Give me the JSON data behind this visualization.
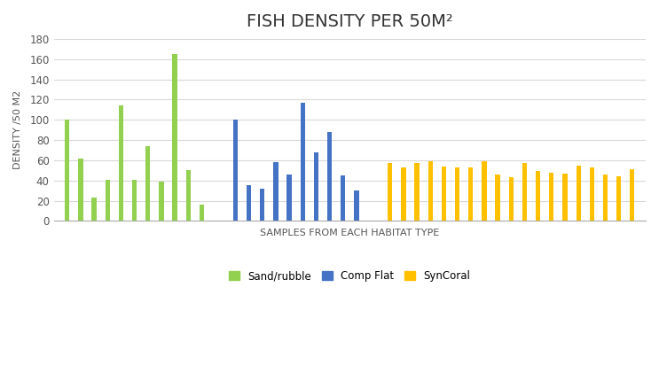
{
  "title": "FISH DENSITY PER 50M²",
  "xlabel": "SAMPLES FROM EACH HABITAT TYPE",
  "ylabel": "DENSITY /50 M2",
  "ylim": [
    0,
    180
  ],
  "yticks": [
    0,
    20,
    40,
    60,
    80,
    100,
    120,
    140,
    160,
    180
  ],
  "sand_rubble": [
    100,
    62,
    23,
    41,
    114,
    41,
    74,
    39,
    165,
    50,
    16
  ],
  "comp_flat": [
    100,
    35,
    32,
    58,
    46,
    117,
    68,
    88,
    45,
    30
  ],
  "syncoral": [
    57,
    53,
    57,
    59,
    54,
    53,
    53,
    59,
    46,
    43,
    57,
    49,
    48,
    47,
    55,
    53,
    46,
    44,
    51
  ],
  "color_sand": "#92D050",
  "color_comp": "#4472C4",
  "color_syn": "#FFC000",
  "background_color": "#FFFFFF",
  "legend_labels": [
    "Sand/rubble",
    "Comp Flat",
    "SynCoral"
  ],
  "title_fontsize": 14,
  "axis_label_fontsize": 8
}
